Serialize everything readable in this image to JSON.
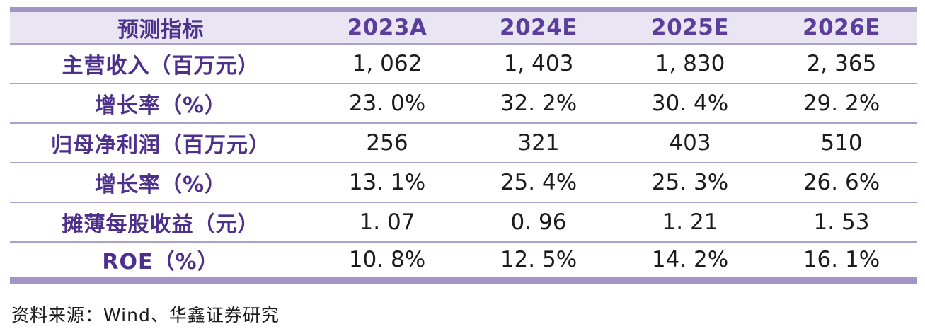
{
  "colors": {
    "border_thick": "#A294C5",
    "border_thin": "#AB9FCB",
    "header_background": "#E9E5F2",
    "header_text": "#5B3D9C",
    "label_text": "#4D2F8C",
    "value_text": "#1b1b1b"
  },
  "table": {
    "columns": {
      "label": "预测指标",
      "y2023": "2023A",
      "y2024": "2024E",
      "y2025": "2025E",
      "y2026": "2026E"
    },
    "rows": [
      {
        "label": "主营收入（百万元）",
        "values": [
          "1, 062",
          "1, 403",
          "1, 830",
          "2, 365"
        ]
      },
      {
        "label": "增长率（%）",
        "values": [
          "23. 0%",
          "32. 2%",
          "30. 4%",
          "29. 2%"
        ]
      },
      {
        "label": "归母净利润（百万元）",
        "values": [
          "256",
          "321",
          "403",
          "510"
        ]
      },
      {
        "label": "增长率（%）",
        "values": [
          "13. 1%",
          "25. 4%",
          "25. 3%",
          "26. 6%"
        ]
      },
      {
        "label": "摊薄每股收益（元）",
        "values": [
          "1. 07",
          "0. 96",
          "1. 21",
          "1. 53"
        ]
      },
      {
        "label": "ROE（%）",
        "values": [
          "10. 8%",
          "12. 5%",
          "14. 2%",
          "16. 1%"
        ]
      }
    ]
  },
  "footer": {
    "source": "资料来源：Wind、华鑫证券研究"
  }
}
